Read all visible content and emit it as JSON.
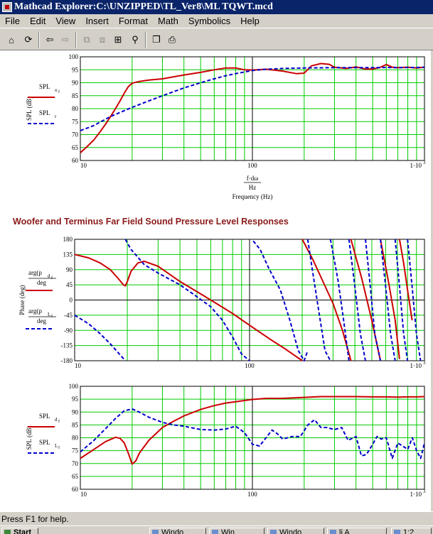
{
  "window": {
    "title": "Mathcad Explorer:C:\\UNZIPPED\\TL_Ver8\\ML TQWT.mcd"
  },
  "menu": [
    "File",
    "Edit",
    "View",
    "Insert",
    "Format",
    "Math",
    "Symbolics",
    "Help"
  ],
  "toolbar": {
    "buttons": [
      {
        "icon": "home-icon",
        "glyph": "⌂",
        "enabled": true
      },
      {
        "icon": "refresh-icon",
        "glyph": "⟳",
        "enabled": true
      },
      {
        "icon": "back-icon",
        "glyph": "⇦",
        "enabled": true
      },
      {
        "icon": "forward-icon",
        "glyph": "⇨",
        "enabled": false
      },
      {
        "icon": "copy-region-icon",
        "glyph": "⧉",
        "enabled": false
      },
      {
        "icon": "paste-region-icon",
        "glyph": "⧈",
        "enabled": false
      },
      {
        "icon": "open-icon",
        "glyph": "⊞",
        "enabled": true
      },
      {
        "icon": "find-icon",
        "glyph": "⚲",
        "enabled": true
      },
      {
        "icon": "copy-icon",
        "glyph": "❐",
        "enabled": true
      },
      {
        "icon": "print-icon",
        "glyph": "⎙",
        "enabled": true
      }
    ]
  },
  "section_heading": "Woofer and Terminus Far Field Sound Pressure Level Responses",
  "status": {
    "text": "Press F1 for help."
  },
  "taskbar": {
    "items": [
      "Start",
      "Windo",
      "Win",
      "Windo",
      "li A",
      "1:2"
    ]
  },
  "colors": {
    "solid_series": "#cc0000",
    "dashed_series": "#0000cc",
    "grid": "#00cc00"
  },
  "chart_data": [
    {
      "type": "line",
      "title": "",
      "xscale": "log",
      "xlim": [
        10,
        1000
      ],
      "ylim": [
        60,
        100
      ],
      "ylabel": "SPL (dB)",
      "xlabel": "Frequency (Hz)",
      "xexpr_num": "f·dω",
      "xexpr_den": "Hz",
      "xticks": [
        "10",
        "100",
        "1·10"
      ],
      "xtick_exp": "3",
      "yticks": [
        "60",
        "65",
        "70",
        "75",
        "80",
        "85",
        "90",
        "95",
        "100"
      ],
      "legend": [
        {
          "label": "SPL",
          "sub": "o",
          "subsub": "f",
          "style": "solid"
        },
        {
          "label": "SPL",
          "sub": "r",
          "subsub": "",
          "style": "dashed"
        }
      ],
      "series": [
        {
          "style": "solid",
          "x": [
            10,
            11,
            12,
            13,
            14,
            15,
            16,
            17,
            18,
            19,
            20,
            22,
            25,
            30,
            40,
            50,
            60,
            70,
            80,
            90,
            100,
            120,
            150,
            180,
            200,
            220,
            250,
            280,
            300,
            350,
            400,
            450,
            500,
            550,
            600,
            650,
            700,
            800,
            900,
            1000
          ],
          "y": [
            63,
            65.5,
            68,
            71,
            74,
            77,
            80,
            83,
            86,
            88.5,
            89.8,
            90.5,
            91,
            91.5,
            93,
            94,
            95,
            95.7,
            95.7,
            95,
            94.9,
            95.2,
            94.5,
            93.5,
            93.7,
            96.5,
            97.4,
            97.1,
            96,
            95.5,
            96.1,
            95.3,
            95.3,
            95.9,
            97,
            96,
            95.8,
            96,
            95.7,
            96
          ]
        },
        {
          "style": "dashed",
          "x": [
            10,
            12,
            15,
            20,
            25,
            30,
            40,
            50,
            60,
            70,
            80,
            100,
            120,
            150,
            200,
            300,
            400,
            500,
            600,
            700,
            800,
            900,
            1000
          ],
          "y": [
            71.5,
            73.5,
            77,
            80.5,
            83,
            85,
            88,
            90,
            91.5,
            92.7,
            93.5,
            94.7,
            95.2,
            95.5,
            95.7,
            95.8,
            95.8,
            95.8,
            95.9,
            95.8,
            95.9,
            95.9,
            96
          ]
        }
      ]
    },
    {
      "type": "line",
      "title": "",
      "xscale": "log",
      "xlim": [
        10,
        1000
      ],
      "ylim": [
        -180,
        180
      ],
      "ylabel": "Phase (deg)",
      "xticks": [
        "10",
        "100",
        "1·10"
      ],
      "xtick_exp": "3",
      "yticks": [
        "-180",
        "-135",
        "-90",
        "-45",
        "0",
        "45",
        "90",
        "135",
        "180"
      ],
      "legend": [
        {
          "label": "arg(p",
          "sub": "d",
          "subsub": "f",
          "den": "deg",
          "style": "solid"
        },
        {
          "label": "arg(p",
          "sub": "L",
          "subsub": "f",
          "den": "deg",
          "style": "dashed"
        }
      ],
      "series": [
        {
          "style": "solid",
          "segments": [
            {
              "x": [
                10,
                12,
                14,
                16,
                18,
                19,
                19.5,
                20,
                21,
                23,
                25,
                30,
                40,
                50,
                60,
                80,
                100,
                130,
                160,
                200
              ],
              "y": [
                135,
                125,
                110,
                90,
                60,
                45,
                42,
                55,
                85,
                110,
                115,
                100,
                55,
                25,
                0,
                -40,
                -75,
                -115,
                -145,
                -180
              ]
            },
            {
              "x": [
                200,
                230,
                260,
                300,
                340,
                380
              ],
              "y": [
                180,
                120,
                60,
                -10,
                -90,
                -180
              ]
            },
            {
              "x": [
                380,
                440,
                500,
                560
              ],
              "y": [
                180,
                60,
                -60,
                -180
              ]
            },
            {
              "x": [
                560,
                620,
                680,
                720
              ],
              "y": [
                180,
                60,
                -60,
                -175
              ]
            },
            {
              "x": [
                720,
                760,
                800,
                850
              ],
              "y": [
                180,
                110,
                30,
                -60
              ]
            }
          ]
        },
        {
          "style": "dashed",
          "segments": [
            {
              "x": [
                10,
                12,
                14,
                16,
                18,
                19.5
              ],
              "y": [
                -45,
                -70,
                -100,
                -130,
                -160,
                -180
              ]
            },
            {
              "x": [
                19.5,
                21,
                25,
                30,
                40,
                50,
                60,
                70,
                80,
                90,
                100
              ],
              "y": [
                180,
                150,
                105,
                80,
                45,
                10,
                -20,
                -60,
                -110,
                -160,
                -180
              ]
            },
            {
              "x": [
                105,
                115,
                130,
                150,
                170,
                190,
                205,
                215
              ],
              "y": [
                175,
                150,
                90,
                30,
                -60,
                -150,
                -180,
                -150
              ]
            },
            {
              "x": [
                215,
                230,
                250,
                270,
                290
              ],
              "y": [
                180,
                80,
                -40,
                -150,
                -180
              ]
            },
            {
              "x": [
                290,
                320,
                345,
                370
              ],
              "y": [
                180,
                60,
                -60,
                -180
              ]
            },
            {
              "x": [
                370,
                400,
                430,
                460
              ],
              "y": [
                180,
                40,
                -100,
                -180
              ]
            },
            {
              "x": [
                460,
                490,
                520,
                560
              ],
              "y": [
                180,
                40,
                -100,
                -180
              ]
            },
            {
              "x": [
                560,
                600,
                640,
                680
              ],
              "y": [
                180,
                40,
                -100,
                -180
              ]
            },
            {
              "x": [
                680,
                720,
                760,
                800
              ],
              "y": [
                180,
                40,
                -100,
                -180
              ]
            },
            {
              "x": [
                800,
                850,
                900,
                950
              ],
              "y": [
                180,
                40,
                -100,
                -180
              ]
            }
          ]
        }
      ]
    },
    {
      "type": "line",
      "title": "",
      "xscale": "log",
      "xlim": [
        10,
        1000
      ],
      "ylim": [
        60,
        100
      ],
      "ylabel": "SPL (dB)",
      "xticks": [
        "10",
        "100",
        "1·10"
      ],
      "xtick_exp": "3",
      "yticks": [
        "60",
        "65",
        "70",
        "75",
        "80",
        "85",
        "90",
        "95",
        "100"
      ],
      "legend": [
        {
          "label": "SPL",
          "sub": "d",
          "subsub": "f",
          "style": "solid"
        },
        {
          "label": "SPL",
          "sub": "L",
          "subsub": "f",
          "style": "dashed"
        }
      ],
      "series": [
        {
          "style": "solid",
          "x": [
            10,
            12,
            14,
            16,
            17,
            18,
            19,
            20,
            21,
            22,
            25,
            30,
            35,
            40,
            50,
            60,
            70,
            80,
            100,
            120,
            150,
            200,
            250,
            300,
            400,
            500,
            600,
            700,
            800,
            900,
            1000
          ],
          "y": [
            72,
            75.5,
            78.5,
            80.2,
            79.8,
            78,
            74,
            69.8,
            71,
            74,
            79,
            84,
            86.5,
            88.5,
            91,
            92.5,
            93.5,
            94,
            94.9,
            95.3,
            95.3,
            95.7,
            96,
            96,
            96,
            95.9,
            95.9,
            95.8,
            95.9,
            95.9,
            96
          ]
        },
        {
          "style": "dashed",
          "x": [
            10,
            12,
            14,
            16,
            18,
            20,
            22,
            25,
            30,
            35,
            40,
            50,
            60,
            70,
            80,
            90,
            100,
            110,
            120,
            130,
            140,
            150,
            170,
            190,
            210,
            230,
            250,
            270,
            300,
            330,
            360,
            400,
            430,
            460,
            500,
            530,
            560,
            600,
            650,
            700,
            800,
            850,
            900,
            950,
            1000
          ],
          "y": [
            74.5,
            79,
            83.5,
            87.5,
            90.5,
            91.2,
            90,
            88,
            86,
            85,
            84.5,
            83.2,
            83,
            83.4,
            84.5,
            82,
            77.5,
            76.8,
            80,
            83,
            81.5,
            79.5,
            80.5,
            80.5,
            85,
            87,
            84,
            84,
            83.2,
            84,
            79,
            80.5,
            73,
            73.5,
            77.5,
            80.5,
            79.5,
            80,
            72,
            78,
            75.5,
            80,
            75,
            72,
            78
          ]
        }
      ]
    }
  ]
}
